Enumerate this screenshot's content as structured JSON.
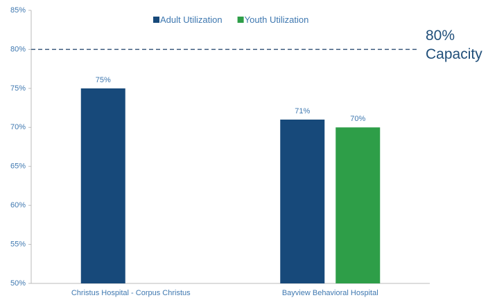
{
  "chart_data": {
    "type": "bar",
    "categories": [
      "Christus Hospital - Corpus Christus",
      "Bayview Behavioral Hospital"
    ],
    "series": [
      {
        "name": "Adult Utilization",
        "color": "#17497a",
        "values": [
          75,
          71
        ],
        "value_labels": [
          "75%",
          "71%"
        ]
      },
      {
        "name": "Youth Utilization",
        "color": "#2e9e48",
        "values": [
          null,
          70
        ],
        "value_labels": [
          null,
          "70%"
        ]
      }
    ],
    "ylim": [
      50,
      85
    ],
    "yticks": [
      {
        "value": 50,
        "label": "50%"
      },
      {
        "value": 55,
        "label": "55%"
      },
      {
        "value": 60,
        "label": "60%"
      },
      {
        "value": 65,
        "label": "65%"
      },
      {
        "value": 70,
        "label": "70%"
      },
      {
        "value": 75,
        "label": "75%"
      },
      {
        "value": 80,
        "label": "80%"
      },
      {
        "value": 85,
        "label": "85%"
      }
    ],
    "reference_line": {
      "value": 80,
      "label": "80% Capacity",
      "color": "#2d4e73"
    },
    "legend": "top"
  }
}
